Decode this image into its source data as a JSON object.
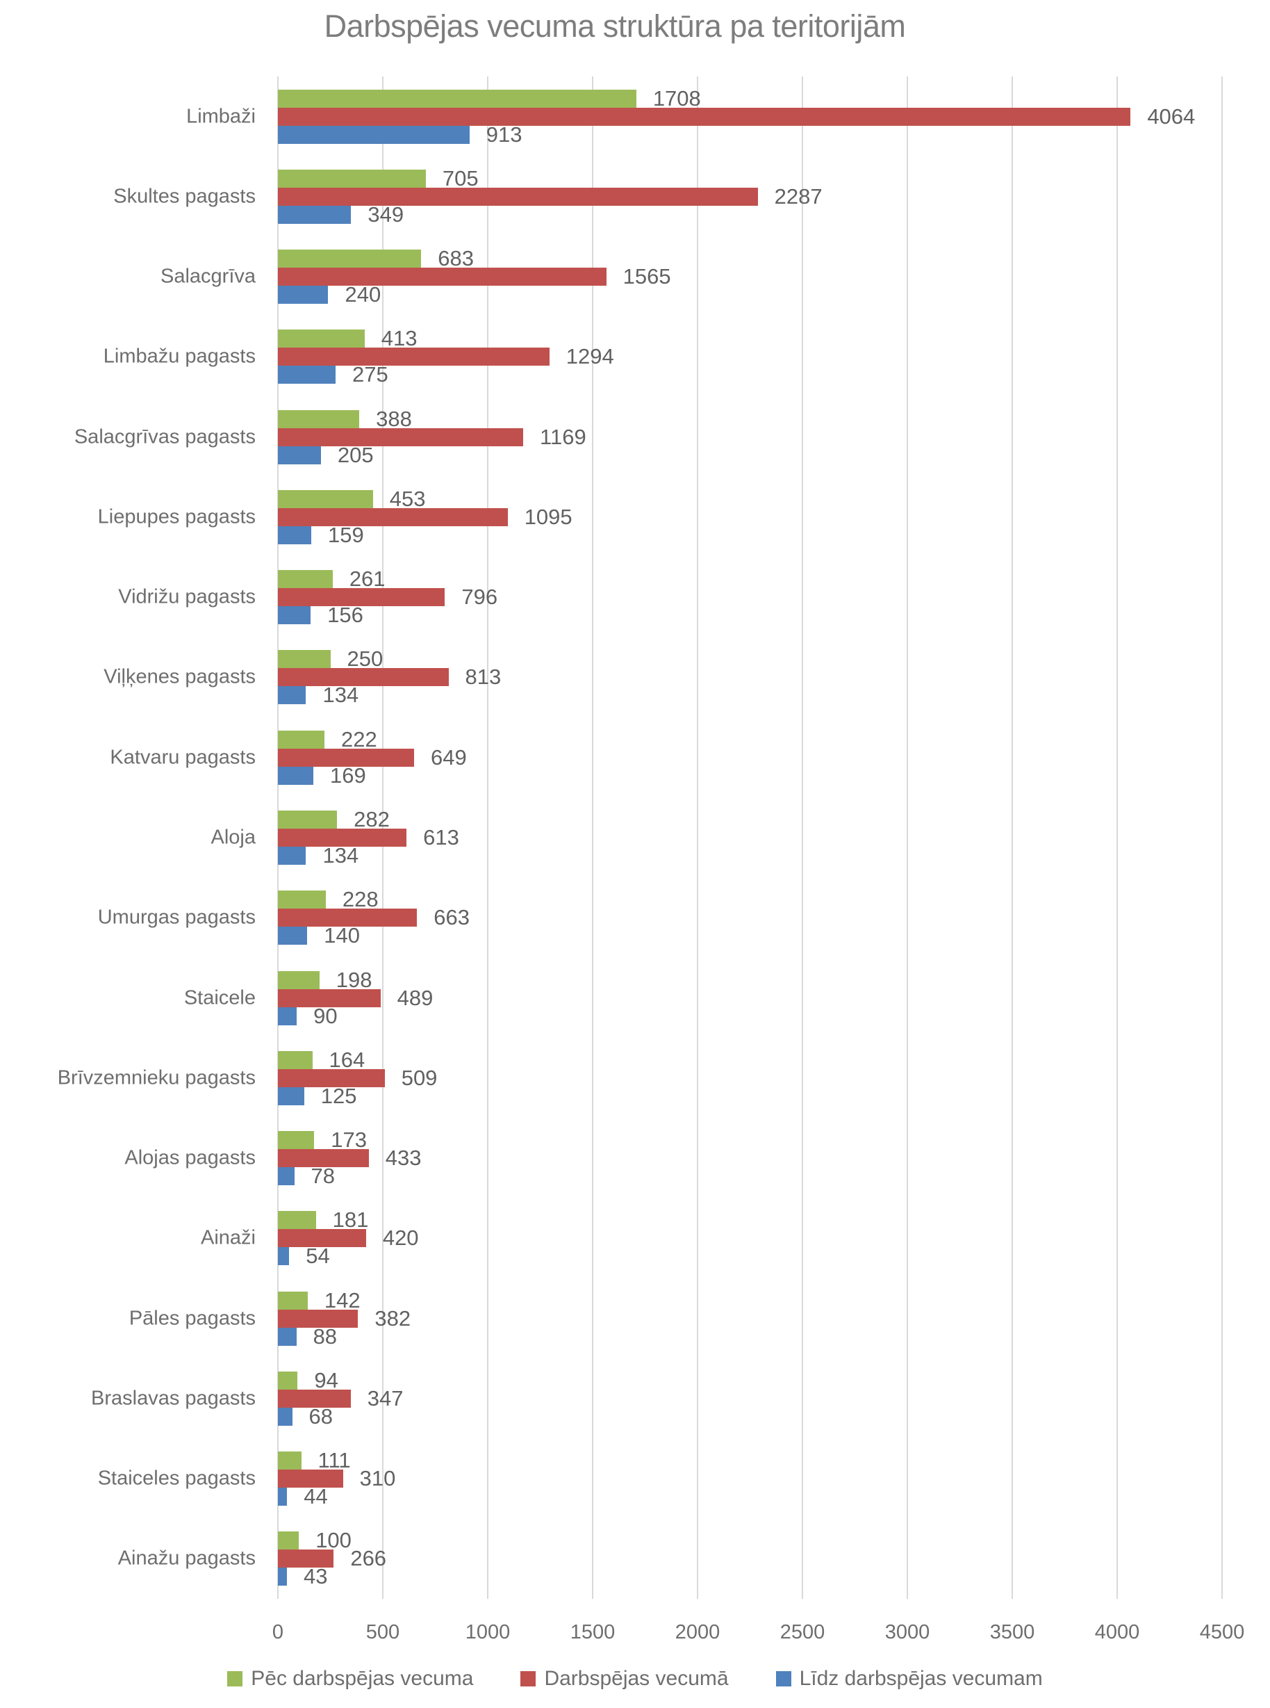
{
  "chart_data": {
    "type": "bar",
    "orientation": "horizontal",
    "title": "Darbspējas vecuma struktūra pa teritorijām",
    "categories": [
      "Limbaži",
      "Skultes pagasts",
      "Salacgrīva",
      "Limbažu pagasts",
      "Salacgrīvas pagasts",
      "Liepupes pagasts",
      "Vidrižu pagasts",
      "Viļķenes pagasts",
      "Katvaru pagasts",
      "Aloja",
      "Umurgas pagasts",
      "Staicele",
      "Brīvzemnieku pagasts",
      "Alojas pagasts",
      "Ainaži",
      "Pāles pagasts",
      "Braslavas pagasts",
      "Staiceles pagasts",
      "Ainažu pagasts"
    ],
    "series": [
      {
        "key": "pec-darbspejas-vecuma",
        "name": "Pēc darbspējas vecuma",
        "color": "#9BBB59",
        "values": [
          1708,
          705,
          683,
          413,
          388,
          453,
          261,
          250,
          222,
          282,
          228,
          198,
          164,
          173,
          181,
          142,
          94,
          111,
          100
        ]
      },
      {
        "key": "darbspejas-vecuma",
        "name": "Darbspējas vecumā",
        "color": "#C0504D",
        "values": [
          4064,
          2287,
          1565,
          1294,
          1169,
          1095,
          796,
          813,
          649,
          613,
          663,
          489,
          509,
          433,
          420,
          382,
          347,
          310,
          266
        ]
      },
      {
        "key": "lidz-darbspejas-vecumam",
        "name": "Līdz darbspējas vecumam",
        "color": "#4F81BD",
        "values": [
          913,
          349,
          240,
          275,
          205,
          159,
          156,
          134,
          169,
          134,
          140,
          90,
          125,
          78,
          54,
          88,
          68,
          44,
          43
        ]
      }
    ],
    "xlim": [
      0,
      4500
    ],
    "x_ticks": [
      0,
      500,
      1000,
      1500,
      2000,
      2500,
      3000,
      3500,
      4000,
      4500
    ],
    "grid": true,
    "value_labels": true,
    "legend_position": "bottom",
    "colors": {
      "grid": "#d9d9d9",
      "title_text": "#7d7d7d",
      "label_text": "#6e6e6e",
      "value_text": "#616161"
    }
  }
}
